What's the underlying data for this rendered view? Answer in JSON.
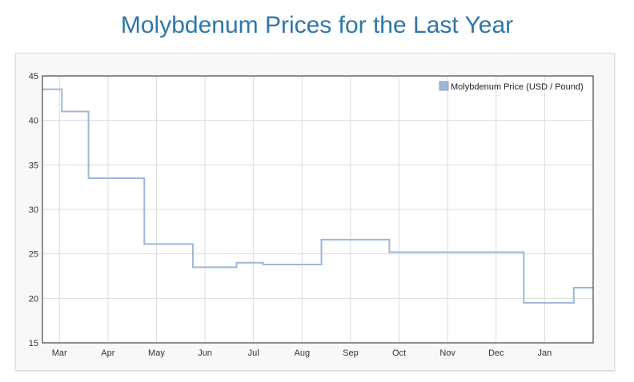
{
  "page": {
    "title": "Molybdenum Prices for the Last Year"
  },
  "colors": {
    "title": "#2e77a8",
    "series_line": "#9cb7d8",
    "legend_swatch": "#9cb7d8",
    "grid": "#dcdcdc",
    "plot_border": "#222222",
    "panel_background": "#f8f8f8"
  },
  "chart_data": {
    "type": "line",
    "title": "",
    "xlabel": "",
    "ylabel": "",
    "ylim": [
      15,
      45
    ],
    "yticks": [
      "15",
      "20",
      "25",
      "30",
      "35",
      "40",
      "45"
    ],
    "x_tick_labels": [
      "Mar",
      "Apr",
      "May",
      "Jun",
      "Jul",
      "Aug",
      "Sep",
      "Oct",
      "Nov",
      "Dec",
      "Jan"
    ],
    "x_unit": "month index (0 = start of Mar)",
    "xlim": [
      -0.35,
      11.0
    ],
    "grid": true,
    "legend_position": "top-right",
    "series": [
      {
        "name": "Molybdenum Price (USD / Pound)",
        "step": true,
        "x": [
          -0.35,
          0.05,
          0.6,
          1.65,
          1.75,
          2.0,
          2.75,
          3.65,
          4.2,
          4.4,
          5.4,
          5.55,
          6.8,
          7.6,
          8.5,
          9.5,
          9.57,
          10.6,
          11.0
        ],
        "values": [
          43.5,
          41.0,
          33.5,
          33.5,
          26.1,
          26.1,
          23.5,
          24.0,
          23.8,
          23.8,
          26.6,
          26.6,
          25.2,
          25.2,
          25.2,
          25.2,
          19.5,
          21.2,
          21.2
        ]
      }
    ]
  }
}
